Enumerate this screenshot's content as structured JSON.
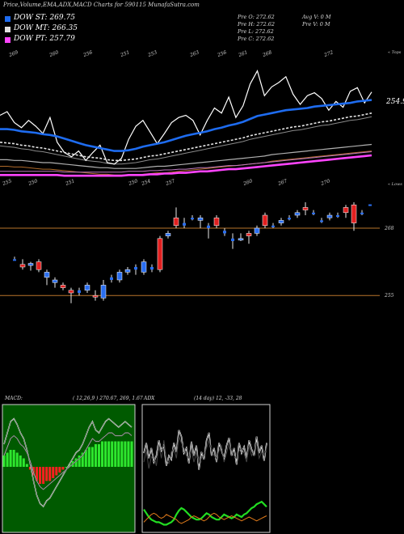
{
  "header": {
    "title": "Price,Volume,EMA,ADX,MACD Charts for 590115 MunafaSutra.com"
  },
  "legend": [
    {
      "label": "DOW ST: 269.75",
      "color": "#1e6cf0"
    },
    {
      "label": "DOW MT: 266.35",
      "color": "#e0e0e0"
    },
    {
      "label": "DOW PT: 257.79",
      "color": "#ff44ff"
    }
  ],
  "price_box": {
    "open": "Pre  O: 272.62",
    "high": "Pre  H: 272.62",
    "low": "Pre  L: 272.62",
    "close": "Pre  C: 272.62"
  },
  "volume_box": {
    "avg": "Avg V: 0  M",
    "pre": "Pre  V: 0  M"
  },
  "ema_panel": {
    "last_label": "254.91",
    "right_tag_top": "« Tops",
    "right_tag_bottom": "« Lows",
    "top_labels": [
      "269",
      "260",
      "256",
      "251",
      "253",
      "263",
      "256",
      "261",
      "268",
      "272"
    ],
    "bottom_labels": [
      "255",
      "250",
      "251",
      "250",
      "254",
      "257",
      "260",
      "267",
      "270"
    ]
  },
  "candle_panel": {
    "ref_lines": [
      "268",
      "255"
    ]
  },
  "macd": {
    "label": "MACD:",
    "params": "( 12,26,9 ) 270.67,  269,  1.67"
  },
  "adx": {
    "label": "ADX",
    "params": "(14  day) 12,  -33,  28"
  },
  "chart_data": [
    {
      "type": "line",
      "panel": "price_ema",
      "series": [
        {
          "values": [
            262.5,
            263.0,
            261.5,
            260.8,
            261.8,
            261.0,
            260.0,
            262.2,
            258.8,
            257.4,
            256.8,
            257.6,
            256.3,
            257.4,
            258.4,
            256.0,
            255.8,
            256.6,
            259.2,
            261.0,
            261.8,
            260.2,
            258.6,
            260.0,
            261.5,
            262.2,
            262.5,
            261.8,
            259.8,
            261.8,
            263.5,
            262.8,
            265.0,
            262.2,
            263.8,
            266.8,
            268.6,
            265.2,
            266.4,
            267.0,
            267.8,
            265.4,
            264.0,
            265.2,
            265.6,
            264.8,
            263.2,
            264.4,
            263.6,
            265.8,
            266.3,
            264.2,
            265.7
          ]
        },
        {
          "values": [
            260.6,
            260.6,
            260.5,
            260.3,
            260.2,
            260.1,
            259.9,
            259.8,
            259.6,
            259.3,
            259.0,
            258.7,
            258.4,
            258.2,
            258.0,
            257.8,
            257.6,
            257.6,
            257.7,
            257.9,
            258.2,
            258.4,
            258.6,
            258.8,
            259.1,
            259.4,
            259.7,
            259.9,
            260.1,
            260.3,
            260.6,
            260.8,
            261.1,
            261.3,
            261.6,
            262.0,
            262.4,
            262.6,
            262.8,
            263.0,
            263.2,
            263.3,
            263.4,
            263.5,
            263.7,
            263.8,
            263.9,
            264.0,
            264.1,
            264.2,
            264.4,
            264.5,
            264.6
          ]
        },
        {
          "values": [
            258.8,
            258.7,
            258.6,
            258.4,
            258.3,
            258.1,
            258.0,
            257.8,
            257.6,
            257.4,
            257.2,
            257.0,
            256.8,
            256.7,
            256.6,
            256.4,
            256.3,
            256.3,
            256.4,
            256.5,
            256.7,
            256.9,
            257.0,
            257.2,
            257.4,
            257.6,
            257.8,
            258.0,
            258.2,
            258.4,
            258.6,
            258.8,
            259.0,
            259.2,
            259.4,
            259.7,
            259.9,
            260.1,
            260.3,
            260.5,
            260.7,
            260.9,
            261.0,
            261.2,
            261.4,
            261.6,
            261.7,
            261.9,
            262.1,
            262.3,
            262.4,
            262.6,
            262.8
          ]
        },
        {
          "values": [
            256.4,
            256.4,
            256.3,
            256.3,
            256.2,
            256.1,
            256.0,
            256.0,
            255.9,
            255.8,
            255.7,
            255.6,
            255.5,
            255.4,
            255.3,
            255.3,
            255.2,
            255.2,
            255.2,
            255.2,
            255.3,
            255.4,
            255.5,
            255.5,
            255.6,
            255.7,
            255.8,
            255.9,
            256.0,
            256.1,
            256.2,
            256.3,
            256.4,
            256.5,
            256.6,
            256.7,
            256.8,
            256.9,
            257.1,
            257.2,
            257.3,
            257.4,
            257.5,
            257.6,
            257.7,
            257.8,
            257.9,
            258.0,
            258.1,
            258.2,
            258.3,
            258.4,
            258.5
          ]
        },
        {
          "values": [
            254.3,
            254.3,
            254.3,
            254.3,
            254.3,
            254.3,
            254.3,
            254.3,
            254.3,
            254.2,
            254.2,
            254.2,
            254.2,
            254.2,
            254.2,
            254.2,
            254.2,
            254.2,
            254.3,
            254.3,
            254.3,
            254.4,
            254.4,
            254.5,
            254.5,
            254.6,
            254.6,
            254.7,
            254.8,
            254.8,
            254.9,
            255.0,
            255.1,
            255.1,
            255.2,
            255.3,
            255.4,
            255.5,
            255.6,
            255.7,
            255.8,
            255.9,
            256.0,
            256.1,
            256.2,
            256.3,
            256.4,
            256.5,
            256.6,
            256.7,
            256.8,
            256.9,
            257.0
          ]
        }
      ]
    },
    {
      "type": "bar",
      "panel": "candles",
      "candles": [
        {
          "o": 262.0,
          "h": 262.5,
          "l": 262.0,
          "c": 262.0,
          "d": "n"
        },
        {
          "o": 261.0,
          "h": 262.0,
          "l": 260.0,
          "c": 260.5,
          "d": "d"
        },
        {
          "o": 260.8,
          "h": 261.5,
          "l": 259.8,
          "c": 261.2,
          "d": "u"
        },
        {
          "o": 261.5,
          "h": 262.0,
          "l": 259.5,
          "c": 260.0,
          "d": "d"
        },
        {
          "o": 259.5,
          "h": 260.0,
          "l": 257.0,
          "c": 258.5,
          "d": "u"
        },
        {
          "o": 258.0,
          "h": 258.5,
          "l": 256.5,
          "c": 257.5,
          "d": "u"
        },
        {
          "o": 257.0,
          "h": 257.5,
          "l": 256.0,
          "c": 256.5,
          "d": "d"
        },
        {
          "o": 256.0,
          "h": 256.5,
          "l": 253.5,
          "c": 255.5,
          "d": "d"
        },
        {
          "o": 256.0,
          "h": 256.5,
          "l": 255.0,
          "c": 255.5,
          "d": "n"
        },
        {
          "o": 256.0,
          "h": 257.5,
          "l": 255.5,
          "c": 257.0,
          "d": "u"
        },
        {
          "o": 255.0,
          "h": 256.0,
          "l": 254.0,
          "c": 255.0,
          "d": "d"
        },
        {
          "o": 254.5,
          "h": 258.0,
          "l": 254.0,
          "c": 257.0,
          "d": "u"
        },
        {
          "o": 258.0,
          "h": 259.0,
          "l": 257.5,
          "c": 258.5,
          "d": "n"
        },
        {
          "o": 258.0,
          "h": 260.0,
          "l": 257.5,
          "c": 259.5,
          "d": "u"
        },
        {
          "o": 259.5,
          "h": 260.5,
          "l": 259.0,
          "c": 260.0,
          "d": "u"
        },
        {
          "o": 260.0,
          "h": 261.0,
          "l": 259.0,
          "c": 260.5,
          "d": "n"
        },
        {
          "o": 259.5,
          "h": 262.0,
          "l": 259.0,
          "c": 261.5,
          "d": "u"
        },
        {
          "o": 260.0,
          "h": 261.0,
          "l": 259.5,
          "c": 260.5,
          "d": "n"
        },
        {
          "o": 260.0,
          "h": 266.5,
          "l": 259.5,
          "c": 266.0,
          "d": "d"
        },
        {
          "o": 266.5,
          "h": 267.5,
          "l": 266.0,
          "c": 267.0,
          "d": "u"
        },
        {
          "o": 270.0,
          "h": 272.0,
          "l": 268.0,
          "c": 268.5,
          "d": "d"
        },
        {
          "o": 269.0,
          "h": 270.0,
          "l": 268.0,
          "c": 268.5,
          "d": "n"
        },
        {
          "o": 270.0,
          "h": 270.5,
          "l": 269.5,
          "c": 270.0,
          "d": "n"
        },
        {
          "o": 270.0,
          "h": 270.5,
          "l": 268.0,
          "c": 269.5,
          "d": "u"
        },
        {
          "o": 268.0,
          "h": 269.0,
          "l": 266.0,
          "c": 268.5,
          "d": "n"
        },
        {
          "o": 270.0,
          "h": 270.5,
          "l": 268.0,
          "c": 268.5,
          "d": "d"
        },
        {
          "o": 267.5,
          "h": 268.0,
          "l": 266.5,
          "c": 267.0,
          "d": "n"
        },
        {
          "o": 266.0,
          "h": 267.0,
          "l": 264.0,
          "c": 265.5,
          "d": "n"
        },
        {
          "o": 266.0,
          "h": 267.0,
          "l": 265.5,
          "c": 266.0,
          "d": "u"
        },
        {
          "o": 266.5,
          "h": 267.5,
          "l": 265.0,
          "c": 267.0,
          "d": "d"
        },
        {
          "o": 267.0,
          "h": 268.5,
          "l": 266.5,
          "c": 268.0,
          "d": "u"
        },
        {
          "o": 270.5,
          "h": 271.0,
          "l": 268.0,
          "c": 268.5,
          "d": "d"
        },
        {
          "o": 268.5,
          "h": 269.0,
          "l": 268.0,
          "c": 268.5,
          "d": "n"
        },
        {
          "o": 269.0,
          "h": 270.0,
          "l": 268.5,
          "c": 269.5,
          "d": "u"
        },
        {
          "o": 270.0,
          "h": 270.5,
          "l": 269.5,
          "c": 270.0,
          "d": "n"
        },
        {
          "o": 270.5,
          "h": 271.5,
          "l": 270.0,
          "c": 271.0,
          "d": "u"
        },
        {
          "o": 272.0,
          "h": 273.0,
          "l": 270.5,
          "c": 271.5,
          "d": "d"
        },
        {
          "o": 271.0,
          "h": 271.5,
          "l": 270.5,
          "c": 271.0,
          "d": "n"
        },
        {
          "o": 269.5,
          "h": 270.0,
          "l": 269.0,
          "c": 269.5,
          "d": "n"
        },
        {
          "o": 270.0,
          "h": 271.0,
          "l": 269.5,
          "c": 270.5,
          "d": "u"
        },
        {
          "o": 270.5,
          "h": 271.0,
          "l": 270.0,
          "c": 270.5,
          "d": "n"
        },
        {
          "o": 272.0,
          "h": 272.5,
          "l": 270.0,
          "c": 271.0,
          "d": "d"
        },
        {
          "o": 272.5,
          "h": 273.0,
          "l": 267.5,
          "c": 269.0,
          "d": "d"
        },
        {
          "o": 271.0,
          "h": 271.5,
          "l": 270.5,
          "c": 271.0,
          "d": "n"
        },
        {
          "o": 272.6,
          "h": 272.6,
          "l": 272.6,
          "c": 272.6,
          "d": "n"
        }
      ]
    },
    {
      "type": "bar",
      "panel": "macd",
      "histogram": [
        0.4,
        0.5,
        0.6,
        0.6,
        0.5,
        0.4,
        0.3,
        0.1,
        -0.1,
        -0.3,
        -0.5,
        -0.6,
        -0.6,
        -0.5,
        -0.5,
        -0.4,
        -0.3,
        -0.2,
        -0.1,
        0.0,
        0.1,
        0.2,
        0.3,
        0.4,
        0.5,
        0.6,
        0.7,
        0.7,
        0.8,
        0.8,
        0.9,
        0.9,
        0.9,
        0.9,
        0.9,
        0.9,
        0.9,
        0.9,
        0.9,
        0.9
      ],
      "series": [
        {
          "values": [
            0.8,
            1.2,
            1.6,
            1.7,
            1.5,
            1.2,
            1.0,
            0.6,
            0.1,
            -0.5,
            -1.0,
            -1.3,
            -1.4,
            -1.2,
            -1.1,
            -0.9,
            -0.7,
            -0.5,
            -0.3,
            -0.1,
            0.1,
            0.3,
            0.5,
            0.6,
            0.8,
            1.1,
            1.4,
            1.6,
            1.3,
            1.2,
            1.4,
            1.6,
            1.7,
            1.6,
            1.5,
            1.4,
            1.5,
            1.6,
            1.5,
            1.4
          ]
        },
        {
          "values": [
            0.4,
            0.7,
            1.0,
            1.1,
            1.0,
            0.8,
            0.7,
            0.5,
            0.2,
            -0.2,
            -0.5,
            -0.7,
            -0.8,
            -0.7,
            -0.6,
            -0.5,
            -0.4,
            -0.3,
            -0.2,
            -0.1,
            0.0,
            0.1,
            0.2,
            0.3,
            0.4,
            0.6,
            0.8,
            1.0,
            0.9,
            0.9,
            1.0,
            1.1,
            1.2,
            1.2,
            1.1,
            1.1,
            1.1,
            1.2,
            1.2,
            1.1
          ]
        }
      ]
    },
    {
      "type": "line",
      "panel": "adx",
      "series": [
        {
          "values": [
            62,
            70,
            58,
            66,
            55,
            60,
            72,
            64,
            68,
            52,
            60,
            57,
            70,
            63,
            80,
            75,
            62,
            66,
            54,
            71,
            60,
            68,
            49,
            63,
            57,
            72,
            78,
            60,
            66,
            55,
            70,
            64,
            58,
            68,
            74,
            60,
            66,
            53,
            70,
            62,
            67,
            58,
            72,
            65,
            60,
            75,
            62,
            68,
            56,
            70
          ]
        },
        {
          "values": [
            55,
            64,
            50,
            59,
            60,
            52,
            68,
            58,
            72,
            57,
            54,
            63,
            66,
            58,
            75,
            70,
            66,
            60,
            58,
            65,
            55,
            62,
            54,
            58,
            60,
            66,
            72,
            64,
            60,
            58,
            64,
            68,
            55,
            62,
            70,
            64,
            60,
            58,
            64,
            66,
            62,
            55,
            68,
            60,
            64,
            70,
            58,
            63,
            60,
            66
          ]
        },
        {
          "values": [
            18,
            15,
            12,
            10,
            9,
            8,
            8,
            7,
            6,
            6,
            7,
            8,
            10,
            14,
            17,
            19,
            18,
            16,
            14,
            12,
            11,
            10,
            10,
            11,
            13,
            15,
            14,
            12,
            11,
            10,
            10,
            12,
            14,
            13,
            12,
            11,
            12,
            14,
            13,
            12,
            14,
            15,
            17,
            19,
            20,
            22,
            23,
            24,
            22,
            20
          ]
        },
        {
          "values": [
            8,
            10,
            12,
            14,
            15,
            14,
            12,
            11,
            12,
            14,
            13,
            12,
            11,
            10,
            8,
            7,
            8,
            9,
            10,
            12,
            13,
            12,
            11,
            10,
            9,
            10,
            12,
            14,
            15,
            14,
            12,
            11,
            10,
            11,
            12,
            13,
            12,
            11,
            10,
            9,
            10,
            11,
            12,
            11,
            10,
            9,
            10,
            11,
            12,
            13
          ]
        }
      ]
    }
  ]
}
